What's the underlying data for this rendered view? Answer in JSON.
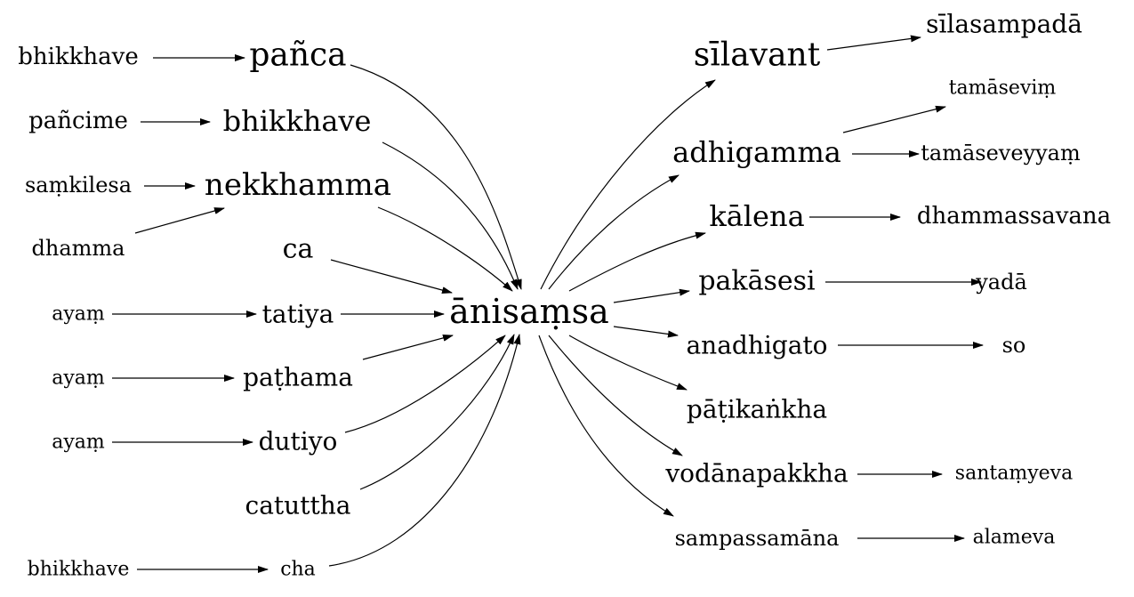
{
  "diagram": {
    "nodes": [
      {
        "id": "anisamsa",
        "label": "ānisaṃsa"
      },
      {
        "id": "bhikkhave1",
        "label": "bhikkhave"
      },
      {
        "id": "panca",
        "label": "pañca"
      },
      {
        "id": "pancime",
        "label": "pañcime"
      },
      {
        "id": "bhikkhave2",
        "label": "bhikkhave"
      },
      {
        "id": "samkilesa",
        "label": "saṃkilesa"
      },
      {
        "id": "nekkhamma",
        "label": "nekkhamma"
      },
      {
        "id": "dhamma",
        "label": "dhamma"
      },
      {
        "id": "ca",
        "label": "ca"
      },
      {
        "id": "ayam1",
        "label": "ayaṃ"
      },
      {
        "id": "tatiya",
        "label": "tatiya"
      },
      {
        "id": "ayam2",
        "label": "ayaṃ"
      },
      {
        "id": "pathama",
        "label": "paṭhama"
      },
      {
        "id": "ayam3",
        "label": "ayaṃ"
      },
      {
        "id": "dutiyo",
        "label": "dutiyo"
      },
      {
        "id": "catuttha",
        "label": "catuttha"
      },
      {
        "id": "bhikkhave3",
        "label": "bhikkhave"
      },
      {
        "id": "cha",
        "label": "cha"
      },
      {
        "id": "silavant",
        "label": "sīlavant"
      },
      {
        "id": "silasampada",
        "label": "sīlasampadā"
      },
      {
        "id": "tamasevim",
        "label": "tamāseviṃ"
      },
      {
        "id": "adhigamma",
        "label": "adhigamma"
      },
      {
        "id": "tamaseveyyam",
        "label": "tamāseveyyaṃ"
      },
      {
        "id": "kalena",
        "label": "kālena"
      },
      {
        "id": "dhammassavana",
        "label": "dhammassavana"
      },
      {
        "id": "pakasesi",
        "label": "pakāsesi"
      },
      {
        "id": "yada",
        "label": "yadā"
      },
      {
        "id": "anadhigato",
        "label": "anadhigato"
      },
      {
        "id": "so",
        "label": "so"
      },
      {
        "id": "patikankha",
        "label": "pāṭikaṅkha"
      },
      {
        "id": "vodanapakkha",
        "label": "vodānapakkha"
      },
      {
        "id": "santamyeva",
        "label": "santaṃyeva"
      },
      {
        "id": "sampassamana",
        "label": "sampassamāna"
      },
      {
        "id": "alameva",
        "label": "alameva"
      }
    ],
    "edges": [
      {
        "from": "bhikkhave1",
        "to": "panca"
      },
      {
        "from": "panca",
        "to": "anisamsa"
      },
      {
        "from": "pancime",
        "to": "bhikkhave2"
      },
      {
        "from": "bhikkhave2",
        "to": "anisamsa"
      },
      {
        "from": "samkilesa",
        "to": "nekkhamma"
      },
      {
        "from": "dhamma",
        "to": "nekkhamma"
      },
      {
        "from": "nekkhamma",
        "to": "anisamsa"
      },
      {
        "from": "ca",
        "to": "anisamsa"
      },
      {
        "from": "ayam1",
        "to": "tatiya"
      },
      {
        "from": "tatiya",
        "to": "anisamsa"
      },
      {
        "from": "ayam2",
        "to": "pathama"
      },
      {
        "from": "pathama",
        "to": "anisamsa"
      },
      {
        "from": "ayam3",
        "to": "dutiyo"
      },
      {
        "from": "dutiyo",
        "to": "anisamsa"
      },
      {
        "from": "catuttha",
        "to": "anisamsa"
      },
      {
        "from": "bhikkhave3",
        "to": "cha"
      },
      {
        "from": "cha",
        "to": "anisamsa"
      },
      {
        "from": "anisamsa",
        "to": "silavant"
      },
      {
        "from": "silavant",
        "to": "silasampada"
      },
      {
        "from": "anisamsa",
        "to": "adhigamma"
      },
      {
        "from": "adhigamma",
        "to": "tamasevim"
      },
      {
        "from": "adhigamma",
        "to": "tamaseveyyam"
      },
      {
        "from": "anisamsa",
        "to": "kalena"
      },
      {
        "from": "kalena",
        "to": "dhammassavana"
      },
      {
        "from": "anisamsa",
        "to": "pakasesi"
      },
      {
        "from": "pakasesi",
        "to": "yada"
      },
      {
        "from": "anisamsa",
        "to": "anadhigato"
      },
      {
        "from": "anadhigato",
        "to": "so"
      },
      {
        "from": "anisamsa",
        "to": "patikankha"
      },
      {
        "from": "anisamsa",
        "to": "vodanapakkha"
      },
      {
        "from": "vodanapakkha",
        "to": "santamyeva"
      },
      {
        "from": "anisamsa",
        "to": "sampassamana"
      },
      {
        "from": "sampassamana",
        "to": "alameva"
      }
    ]
  }
}
